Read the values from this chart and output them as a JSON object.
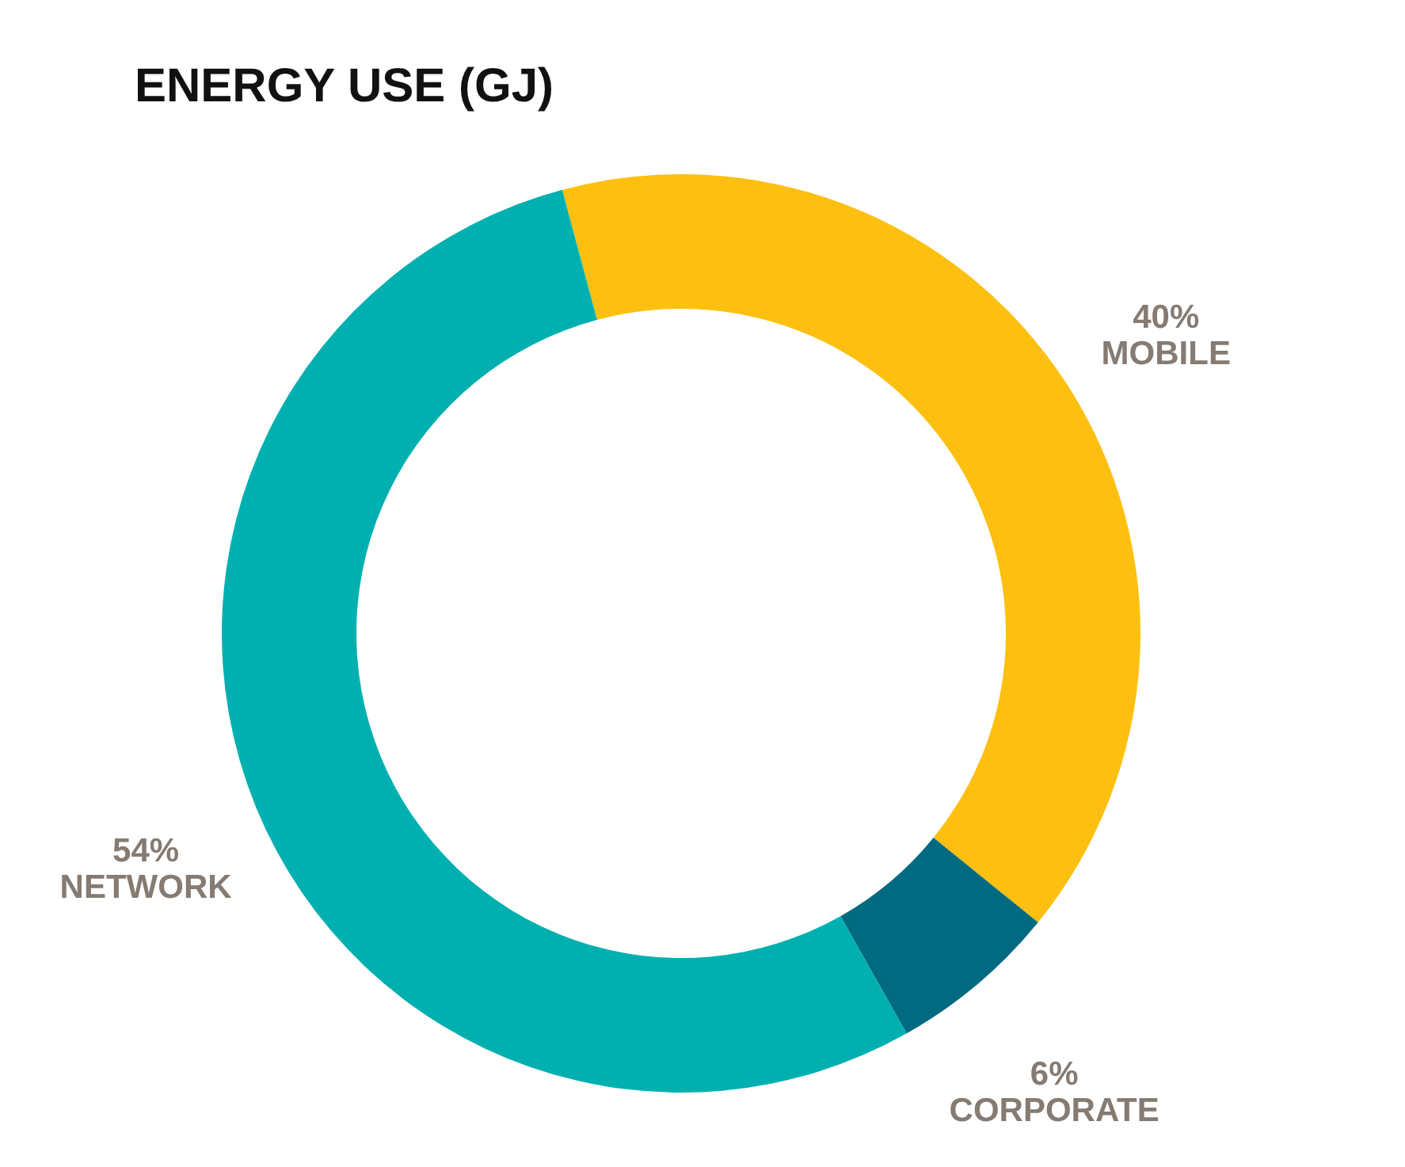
{
  "chart_data": {
    "type": "donut",
    "title": "ENERGY USE (GJ)",
    "categories": [
      "MOBILE",
      "CORPORATE",
      "NETWORK"
    ],
    "values": [
      40,
      6,
      54
    ],
    "colors": [
      "#fdc010",
      "#006a80",
      "#00b0b0"
    ],
    "value_labels": [
      "40%",
      "6%",
      "54%"
    ]
  }
}
